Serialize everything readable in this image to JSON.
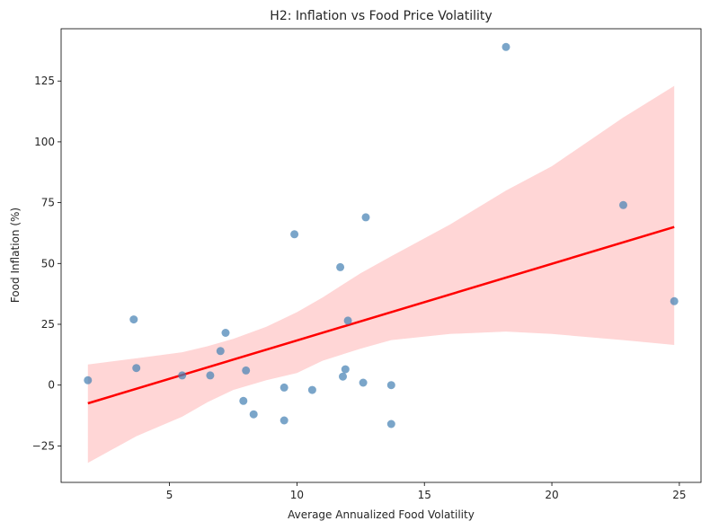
{
  "chart_data": {
    "type": "scatter",
    "title": "H2: Inflation vs Food Price Volatility",
    "xlabel": "Average Annualized Food Volatility",
    "ylabel": "Food Inflation (%)",
    "xlim": [
      0.75,
      25.85
    ],
    "ylim": [
      -40,
      146.5
    ],
    "xticks": [
      5,
      10,
      15,
      20,
      25
    ],
    "yticks": [
      -25,
      0,
      25,
      50,
      75,
      100,
      125
    ],
    "grid": false,
    "legend": "none",
    "colors": {
      "points": "#4682b4",
      "regression_line": "#ff0000",
      "confidence_band": "#ffd6d6"
    },
    "series": [
      {
        "points": [
          {
            "x": 1.8,
            "y": 2
          },
          {
            "x": 3.6,
            "y": 27
          },
          {
            "x": 3.7,
            "y": 7
          },
          {
            "x": 5.5,
            "y": 4
          },
          {
            "x": 6.6,
            "y": 4
          },
          {
            "x": 7.0,
            "y": 14
          },
          {
            "x": 7.2,
            "y": 21.5
          },
          {
            "x": 7.9,
            "y": -6.5
          },
          {
            "x": 8.0,
            "y": 6
          },
          {
            "x": 8.3,
            "y": -12
          },
          {
            "x": 9.5,
            "y": -1
          },
          {
            "x": 9.5,
            "y": -14.5
          },
          {
            "x": 9.9,
            "y": 62
          },
          {
            "x": 10.6,
            "y": -2
          },
          {
            "x": 11.7,
            "y": 48.5
          },
          {
            "x": 11.8,
            "y": 3.5
          },
          {
            "x": 11.9,
            "y": 6.5
          },
          {
            "x": 12.0,
            "y": 26.5
          },
          {
            "x": 12.6,
            "y": 1
          },
          {
            "x": 12.7,
            "y": 69
          },
          {
            "x": 13.7,
            "y": 0
          },
          {
            "x": 13.7,
            "y": -16
          },
          {
            "x": 18.2,
            "y": 139
          },
          {
            "x": 22.8,
            "y": 74
          },
          {
            "x": 24.8,
            "y": 34.5
          }
        ]
      }
    ],
    "regression": {
      "x": [
        1.8,
        24.8
      ],
      "y": [
        -7.5,
        65
      ]
    },
    "confidence_band": {
      "x": [
        1.8,
        3.7,
        5.5,
        6.5,
        7.5,
        8.8,
        10,
        11,
        12.5,
        13.7,
        16,
        18.2,
        20,
        22.8,
        24.8
      ],
      "lower": [
        -32,
        -21,
        -13,
        -7,
        -2,
        2,
        5,
        10,
        15,
        18.5,
        21,
        22,
        21,
        18.5,
        16.5
      ],
      "upper": [
        8.5,
        11,
        13.5,
        16,
        19,
        24,
        30,
        36,
        46,
        53,
        66,
        80,
        90,
        110,
        123
      ]
    }
  }
}
